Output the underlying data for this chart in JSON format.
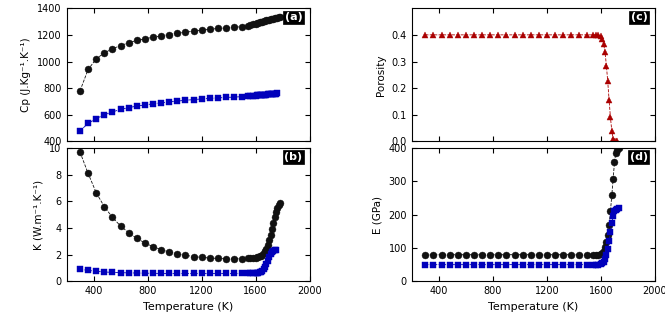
{
  "panel_a": {
    "label": "(a)",
    "ylabel": "Cp (J.Kg⁻¹.K⁻¹)",
    "ylim": [
      400,
      1400
    ],
    "yticks": [
      400,
      600,
      800,
      1000,
      1200,
      1400
    ],
    "xlim": [
      200,
      2000
    ],
    "xticks": [
      400,
      800,
      1200,
      1600,
      2000
    ],
    "black_T": [
      300,
      360,
      420,
      480,
      540,
      600,
      660,
      720,
      780,
      840,
      900,
      960,
      1020,
      1080,
      1140,
      1200,
      1260,
      1320,
      1380,
      1440,
      1500,
      1540,
      1560,
      1580,
      1600,
      1610,
      1620,
      1630,
      1640,
      1650,
      1660,
      1670,
      1680,
      1690,
      1700,
      1710,
      1720,
      1730,
      1740,
      1750,
      1760,
      1770,
      1780
    ],
    "black_V": [
      780,
      940,
      1020,
      1065,
      1095,
      1120,
      1140,
      1158,
      1170,
      1182,
      1193,
      1202,
      1212,
      1220,
      1228,
      1235,
      1242,
      1248,
      1253,
      1258,
      1262,
      1267,
      1272,
      1278,
      1285,
      1288,
      1292,
      1295,
      1298,
      1300,
      1303,
      1305,
      1308,
      1310,
      1313,
      1316,
      1320,
      1322,
      1325,
      1328,
      1330,
      1333,
      1336
    ],
    "blue_T": [
      300,
      360,
      420,
      480,
      540,
      600,
      660,
      720,
      780,
      840,
      900,
      960,
      1020,
      1080,
      1140,
      1200,
      1260,
      1320,
      1380,
      1440,
      1500,
      1540,
      1560,
      1580,
      1600,
      1610,
      1620,
      1630,
      1640,
      1650,
      1660,
      1670,
      1680,
      1690,
      1700,
      1710,
      1720,
      1730,
      1740,
      1750,
      1760
    ],
    "blue_V": [
      480,
      535,
      572,
      600,
      622,
      640,
      654,
      665,
      674,
      682,
      690,
      697,
      703,
      709,
      714,
      719,
      723,
      727,
      730,
      733,
      736,
      738,
      740,
      742,
      744,
      745,
      746,
      747,
      748,
      749,
      750,
      751,
      752,
      753,
      754,
      755,
      756,
      757,
      758,
      759,
      760
    ]
  },
  "panel_b": {
    "label": "(b)",
    "ylabel": "K (W.m⁻¹.K⁻¹)",
    "ylim": [
      0,
      10
    ],
    "yticks": [
      0,
      2,
      4,
      6,
      8,
      10
    ],
    "xlim": [
      200,
      2000
    ],
    "xticks": [
      400,
      800,
      1200,
      1600,
      2000
    ],
    "xlabel": "Temperature (K)",
    "black_T": [
      300,
      360,
      420,
      480,
      540,
      600,
      660,
      720,
      780,
      840,
      900,
      960,
      1020,
      1080,
      1140,
      1200,
      1260,
      1320,
      1380,
      1440,
      1500,
      1540,
      1560,
      1580,
      1600,
      1610,
      1620,
      1630,
      1640,
      1650,
      1660,
      1670,
      1680,
      1690,
      1700,
      1710,
      1720,
      1730,
      1740,
      1750,
      1760,
      1770,
      1780
    ],
    "black_V": [
      9.7,
      8.1,
      6.65,
      5.6,
      4.8,
      4.15,
      3.65,
      3.22,
      2.88,
      2.6,
      2.38,
      2.2,
      2.06,
      1.95,
      1.86,
      1.8,
      1.75,
      1.72,
      1.7,
      1.7,
      1.71,
      1.72,
      1.74,
      1.76,
      1.78,
      1.8,
      1.83,
      1.87,
      1.93,
      2.0,
      2.1,
      2.25,
      2.45,
      2.75,
      3.1,
      3.5,
      3.95,
      4.4,
      4.85,
      5.2,
      5.5,
      5.7,
      5.85
    ],
    "blue_T": [
      300,
      360,
      420,
      480,
      540,
      600,
      660,
      720,
      780,
      840,
      900,
      960,
      1020,
      1080,
      1140,
      1200,
      1260,
      1320,
      1380,
      1440,
      1500,
      1540,
      1560,
      1580,
      1600,
      1610,
      1620,
      1630,
      1640,
      1650,
      1660,
      1670,
      1680,
      1690,
      1700,
      1710,
      1720,
      1730,
      1740,
      1750
    ],
    "blue_V": [
      0.9,
      0.82,
      0.75,
      0.7,
      0.67,
      0.65,
      0.63,
      0.62,
      0.61,
      0.6,
      0.59,
      0.59,
      0.59,
      0.59,
      0.59,
      0.59,
      0.59,
      0.59,
      0.59,
      0.59,
      0.59,
      0.59,
      0.59,
      0.6,
      0.61,
      0.62,
      0.64,
      0.67,
      0.72,
      0.8,
      0.92,
      1.1,
      1.3,
      1.55,
      1.82,
      2.05,
      2.2,
      2.3,
      2.35,
      2.38
    ]
  },
  "panel_c": {
    "label": "(c)",
    "ylabel": "Porosity",
    "ylim": [
      0,
      0.5
    ],
    "yticks": [
      0,
      0.1,
      0.2,
      0.3,
      0.4
    ],
    "xlim": [
      200,
      2000
    ],
    "xticks": [
      400,
      800,
      1200,
      1600,
      2000
    ],
    "red_T": [
      300,
      360,
      420,
      480,
      540,
      600,
      660,
      720,
      780,
      840,
      900,
      960,
      1020,
      1080,
      1140,
      1200,
      1260,
      1320,
      1380,
      1440,
      1500,
      1540,
      1560,
      1580,
      1600,
      1610,
      1620,
      1630,
      1640,
      1650,
      1660,
      1670,
      1680,
      1690,
      1700,
      1710,
      1720
    ],
    "red_V": [
      0.4,
      0.4,
      0.4,
      0.4,
      0.4,
      0.4,
      0.4,
      0.4,
      0.4,
      0.4,
      0.4,
      0.4,
      0.4,
      0.4,
      0.4,
      0.4,
      0.4,
      0.4,
      0.4,
      0.4,
      0.4,
      0.4,
      0.4,
      0.4,
      0.395,
      0.385,
      0.365,
      0.335,
      0.285,
      0.225,
      0.155,
      0.09,
      0.04,
      0.01,
      0.002,
      0.0,
      0.0
    ]
  },
  "panel_d": {
    "label": "(d)",
    "ylabel": "E (GPa)",
    "ylim": [
      0,
      400
    ],
    "yticks": [
      0,
      100,
      200,
      300,
      400
    ],
    "xlim": [
      200,
      2000
    ],
    "xticks": [
      400,
      800,
      1200,
      1600,
      2000
    ],
    "xlabel": "Temperature (K)",
    "black_T": [
      300,
      360,
      420,
      480,
      540,
      600,
      660,
      720,
      780,
      840,
      900,
      960,
      1020,
      1080,
      1140,
      1200,
      1260,
      1320,
      1380,
      1440,
      1500,
      1540,
      1560,
      1580,
      1600,
      1610,
      1620,
      1630,
      1640,
      1650,
      1660,
      1670,
      1680,
      1690,
      1700,
      1710,
      1720,
      1730
    ],
    "black_V": [
      80,
      80,
      80,
      80,
      80,
      80,
      80,
      80,
      80,
      80,
      80,
      80,
      80,
      80,
      80,
      80,
      80,
      80,
      80,
      80,
      80,
      80,
      80,
      80,
      82,
      85,
      92,
      103,
      118,
      140,
      170,
      210,
      258,
      308,
      358,
      385,
      395,
      400
    ],
    "blue_T": [
      300,
      360,
      420,
      480,
      540,
      600,
      660,
      720,
      780,
      840,
      900,
      960,
      1020,
      1080,
      1140,
      1200,
      1260,
      1320,
      1380,
      1440,
      1500,
      1540,
      1560,
      1580,
      1600,
      1610,
      1620,
      1630,
      1640,
      1650,
      1660,
      1670,
      1680,
      1690,
      1700,
      1710,
      1720,
      1730
    ],
    "blue_V": [
      50,
      50,
      50,
      50,
      50,
      50,
      50,
      50,
      50,
      50,
      50,
      50,
      50,
      50,
      50,
      50,
      50,
      50,
      50,
      50,
      50,
      50,
      50,
      50,
      51,
      54,
      59,
      67,
      80,
      98,
      120,
      148,
      175,
      195,
      210,
      215,
      218,
      220
    ]
  },
  "black_color": "#111111",
  "blue_color": "#0000bb",
  "red_color": "#aa0000",
  "marker_size": 5,
  "line_style": "--",
  "line_width": 0.6
}
